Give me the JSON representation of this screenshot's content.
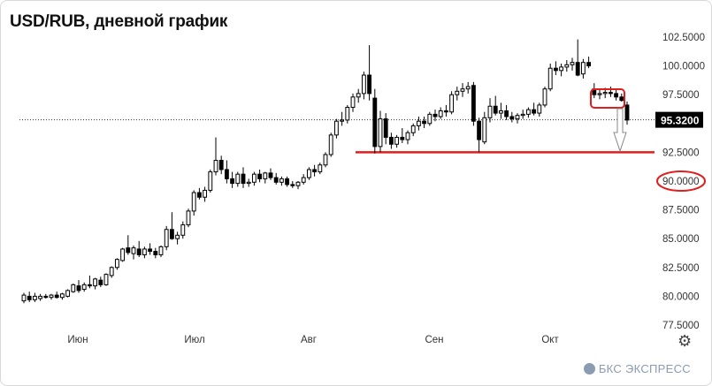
{
  "title": "USD/RUB, дневной график",
  "brand": {
    "name": "БКС ЭКСПРЕСС",
    "icon": "bks-logo-icon"
  },
  "settings_icon": "gear-icon",
  "colors": {
    "support_line": "#e01e1e",
    "annotation": "#e01e1e",
    "up_candle": "#ffffff",
    "down_candle": "#000000",
    "price_tag": "#000000"
  },
  "chart_data": {
    "type": "candlestick",
    "title": "USD/RUB, дневной график",
    "y_ticks": [
      "77.5000",
      "80.0000",
      "82.5000",
      "85.0000",
      "87.5000",
      "90.0000",
      "92.5000",
      "95.0000",
      "97.5000",
      "100.0000",
      "102.5000"
    ],
    "ylim": [
      77.5,
      102.5
    ],
    "x_ticks": [
      "Июн",
      "Июл",
      "Авг",
      "Сен",
      "Окт"
    ],
    "last_price": "95.3200",
    "support_level": 92.5,
    "target_level": "90.0000",
    "candles": [
      {
        "o": 79.6,
        "h": 80.3,
        "l": 79.4,
        "c": 80.1
      },
      {
        "o": 80.0,
        "h": 80.4,
        "l": 79.5,
        "c": 79.7
      },
      {
        "o": 79.7,
        "h": 80.3,
        "l": 79.5,
        "c": 80.0
      },
      {
        "o": 79.8,
        "h": 80.2,
        "l": 79.6,
        "c": 80.0
      },
      {
        "o": 80.0,
        "h": 80.2,
        "l": 79.8,
        "c": 79.9
      },
      {
        "o": 79.9,
        "h": 80.2,
        "l": 79.7,
        "c": 80.1
      },
      {
        "o": 80.1,
        "h": 80.4,
        "l": 79.8,
        "c": 79.9
      },
      {
        "o": 79.9,
        "h": 80.3,
        "l": 79.7,
        "c": 80.2
      },
      {
        "o": 80.0,
        "h": 80.6,
        "l": 79.9,
        "c": 80.5
      },
      {
        "o": 80.4,
        "h": 81.1,
        "l": 80.3,
        "c": 81.0
      },
      {
        "o": 80.9,
        "h": 81.4,
        "l": 80.3,
        "c": 80.5
      },
      {
        "o": 80.6,
        "h": 81.2,
        "l": 80.4,
        "c": 81.0
      },
      {
        "o": 81.0,
        "h": 81.8,
        "l": 80.7,
        "c": 80.9
      },
      {
        "o": 80.9,
        "h": 81.6,
        "l": 80.6,
        "c": 81.5
      },
      {
        "o": 81.4,
        "h": 81.7,
        "l": 80.8,
        "c": 81.0
      },
      {
        "o": 81.0,
        "h": 82.0,
        "l": 80.9,
        "c": 81.9
      },
      {
        "o": 81.8,
        "h": 82.6,
        "l": 81.6,
        "c": 82.5
      },
      {
        "o": 82.5,
        "h": 83.3,
        "l": 82.3,
        "c": 83.2
      },
      {
        "o": 83.1,
        "h": 84.2,
        "l": 83.0,
        "c": 84.1
      },
      {
        "o": 84.2,
        "h": 85.3,
        "l": 83.6,
        "c": 83.8
      },
      {
        "o": 83.7,
        "h": 84.4,
        "l": 83.2,
        "c": 84.2
      },
      {
        "o": 84.1,
        "h": 84.8,
        "l": 83.4,
        "c": 83.6
      },
      {
        "o": 83.6,
        "h": 84.3,
        "l": 83.3,
        "c": 84.1
      },
      {
        "o": 84.1,
        "h": 84.6,
        "l": 83.6,
        "c": 83.9
      },
      {
        "o": 83.9,
        "h": 84.2,
        "l": 83.3,
        "c": 83.6
      },
      {
        "o": 83.6,
        "h": 84.4,
        "l": 83.4,
        "c": 84.3
      },
      {
        "o": 84.3,
        "h": 86.1,
        "l": 84.0,
        "c": 85.8
      },
      {
        "o": 85.8,
        "h": 87.3,
        "l": 84.9,
        "c": 85.0
      },
      {
        "o": 85.0,
        "h": 85.6,
        "l": 84.5,
        "c": 85.3
      },
      {
        "o": 85.3,
        "h": 86.5,
        "l": 85.0,
        "c": 86.2
      },
      {
        "o": 86.2,
        "h": 87.6,
        "l": 86.0,
        "c": 87.4
      },
      {
        "o": 87.4,
        "h": 89.2,
        "l": 87.0,
        "c": 89.0
      },
      {
        "o": 89.0,
        "h": 89.4,
        "l": 88.4,
        "c": 88.6
      },
      {
        "o": 88.6,
        "h": 89.5,
        "l": 88.2,
        "c": 89.2
      },
      {
        "o": 89.2,
        "h": 91.0,
        "l": 89.0,
        "c": 90.8
      },
      {
        "o": 90.8,
        "h": 93.8,
        "l": 90.5,
        "c": 91.8
      },
      {
        "o": 91.8,
        "h": 92.2,
        "l": 90.6,
        "c": 91.0
      },
      {
        "o": 91.0,
        "h": 91.8,
        "l": 89.8,
        "c": 90.2
      },
      {
        "o": 90.2,
        "h": 90.8,
        "l": 89.4,
        "c": 89.8
      },
      {
        "o": 89.8,
        "h": 90.8,
        "l": 89.5,
        "c": 90.6
      },
      {
        "o": 90.6,
        "h": 91.2,
        "l": 89.4,
        "c": 89.8
      },
      {
        "o": 89.8,
        "h": 90.2,
        "l": 89.5,
        "c": 89.9
      },
      {
        "o": 89.9,
        "h": 90.8,
        "l": 89.6,
        "c": 90.6
      },
      {
        "o": 90.6,
        "h": 91.0,
        "l": 89.9,
        "c": 90.2
      },
      {
        "o": 90.2,
        "h": 90.8,
        "l": 89.8,
        "c": 90.7
      },
      {
        "o": 90.7,
        "h": 91.1,
        "l": 90.1,
        "c": 90.3
      },
      {
        "o": 90.3,
        "h": 90.7,
        "l": 89.7,
        "c": 89.9
      },
      {
        "o": 89.9,
        "h": 90.4,
        "l": 89.6,
        "c": 90.2
      },
      {
        "o": 90.2,
        "h": 90.4,
        "l": 89.5,
        "c": 89.7
      },
      {
        "o": 89.7,
        "h": 90.0,
        "l": 89.4,
        "c": 89.6
      },
      {
        "o": 89.6,
        "h": 90.0,
        "l": 89.3,
        "c": 89.9
      },
      {
        "o": 89.9,
        "h": 90.6,
        "l": 89.7,
        "c": 90.3
      },
      {
        "o": 90.3,
        "h": 91.2,
        "l": 90.1,
        "c": 91.0
      },
      {
        "o": 91.0,
        "h": 91.4,
        "l": 90.4,
        "c": 90.8
      },
      {
        "o": 90.8,
        "h": 91.6,
        "l": 90.6,
        "c": 91.4
      },
      {
        "o": 91.4,
        "h": 92.5,
        "l": 91.2,
        "c": 92.3
      },
      {
        "o": 92.3,
        "h": 94.2,
        "l": 92.1,
        "c": 94.0
      },
      {
        "o": 94.0,
        "h": 95.4,
        "l": 93.7,
        "c": 95.2
      },
      {
        "o": 95.2,
        "h": 96.0,
        "l": 94.8,
        "c": 95.3
      },
      {
        "o": 95.3,
        "h": 96.6,
        "l": 95.0,
        "c": 96.4
      },
      {
        "o": 96.4,
        "h": 97.6,
        "l": 96.0,
        "c": 97.3
      },
      {
        "o": 97.3,
        "h": 98.0,
        "l": 96.8,
        "c": 97.6
      },
      {
        "o": 97.6,
        "h": 99.5,
        "l": 97.1,
        "c": 99.2
      },
      {
        "o": 99.2,
        "h": 101.8,
        "l": 97.0,
        "c": 97.6
      },
      {
        "o": 97.2,
        "h": 98.0,
        "l": 92.4,
        "c": 93.0
      },
      {
        "o": 93.0,
        "h": 96.1,
        "l": 92.5,
        "c": 95.4
      },
      {
        "o": 95.4,
        "h": 95.9,
        "l": 93.2,
        "c": 93.8
      },
      {
        "o": 93.8,
        "h": 94.2,
        "l": 92.8,
        "c": 93.2
      },
      {
        "o": 93.2,
        "h": 94.0,
        "l": 92.9,
        "c": 93.8
      },
      {
        "o": 93.8,
        "h": 94.6,
        "l": 93.3,
        "c": 93.6
      },
      {
        "o": 93.6,
        "h": 94.4,
        "l": 93.2,
        "c": 94.2
      },
      {
        "o": 94.2,
        "h": 95.0,
        "l": 93.9,
        "c": 94.8
      },
      {
        "o": 94.8,
        "h": 95.6,
        "l": 94.4,
        "c": 95.2
      },
      {
        "o": 95.2,
        "h": 95.6,
        "l": 94.6,
        "c": 95.0
      },
      {
        "o": 95.0,
        "h": 96.0,
        "l": 94.8,
        "c": 95.8
      },
      {
        "o": 95.8,
        "h": 96.2,
        "l": 95.2,
        "c": 95.6
      },
      {
        "o": 95.6,
        "h": 96.4,
        "l": 95.4,
        "c": 96.1
      },
      {
        "o": 96.1,
        "h": 96.6,
        "l": 95.6,
        "c": 96.0
      },
      {
        "o": 96.0,
        "h": 97.8,
        "l": 95.8,
        "c": 97.5
      },
      {
        "o": 97.5,
        "h": 98.2,
        "l": 97.0,
        "c": 97.8
      },
      {
        "o": 97.8,
        "h": 98.5,
        "l": 97.3,
        "c": 98.0
      },
      {
        "o": 98.0,
        "h": 98.6,
        "l": 97.6,
        "c": 98.2
      },
      {
        "o": 98.3,
        "h": 98.6,
        "l": 94.8,
        "c": 95.2
      },
      {
        "o": 95.2,
        "h": 95.5,
        "l": 92.5,
        "c": 93.6
      },
      {
        "o": 93.4,
        "h": 96.0,
        "l": 93.2,
        "c": 95.5
      },
      {
        "o": 95.5,
        "h": 97.2,
        "l": 95.1,
        "c": 96.5
      },
      {
        "o": 96.5,
        "h": 97.4,
        "l": 95.7,
        "c": 95.9
      },
      {
        "o": 95.9,
        "h": 96.8,
        "l": 95.4,
        "c": 96.1
      },
      {
        "o": 96.1,
        "h": 96.6,
        "l": 95.3,
        "c": 95.6
      },
      {
        "o": 95.6,
        "h": 96.0,
        "l": 95.1,
        "c": 95.4
      },
      {
        "o": 95.4,
        "h": 95.9,
        "l": 95.0,
        "c": 95.7
      },
      {
        "o": 95.7,
        "h": 96.2,
        "l": 95.4,
        "c": 95.8
      },
      {
        "o": 95.8,
        "h": 96.4,
        "l": 95.5,
        "c": 96.2
      },
      {
        "o": 96.2,
        "h": 96.8,
        "l": 95.7,
        "c": 95.9
      },
      {
        "o": 95.9,
        "h": 96.8,
        "l": 95.6,
        "c": 96.6
      },
      {
        "o": 96.6,
        "h": 98.2,
        "l": 96.4,
        "c": 98.0
      },
      {
        "o": 98.0,
        "h": 100.2,
        "l": 97.8,
        "c": 99.8
      },
      {
        "o": 99.8,
        "h": 100.4,
        "l": 99.2,
        "c": 99.6
      },
      {
        "o": 99.6,
        "h": 100.2,
        "l": 99.1,
        "c": 99.9
      },
      {
        "o": 99.9,
        "h": 100.5,
        "l": 99.5,
        "c": 100.1
      },
      {
        "o": 100.1,
        "h": 100.7,
        "l": 99.6,
        "c": 100.3
      },
      {
        "o": 100.3,
        "h": 102.3,
        "l": 99.1,
        "c": 99.2
      },
      {
        "o": 99.3,
        "h": 100.6,
        "l": 98.9,
        "c": 100.3
      },
      {
        "o": 100.3,
        "h": 100.8,
        "l": 99.8,
        "c": 100.0
      },
      {
        "o": 98.0,
        "h": 98.5,
        "l": 97.2,
        "c": 97.5
      },
      {
        "o": 97.5,
        "h": 98.0,
        "l": 97.1,
        "c": 97.6
      },
      {
        "o": 97.6,
        "h": 98.1,
        "l": 97.2,
        "c": 97.7
      },
      {
        "o": 97.7,
        "h": 98.2,
        "l": 97.3,
        "c": 97.6
      },
      {
        "o": 97.6,
        "h": 97.9,
        "l": 97.0,
        "c": 97.3
      },
      {
        "o": 97.3,
        "h": 97.6,
        "l": 96.9,
        "c": 97.0
      },
      {
        "o": 96.6,
        "h": 96.9,
        "l": 94.9,
        "c": 95.3
      }
    ]
  }
}
